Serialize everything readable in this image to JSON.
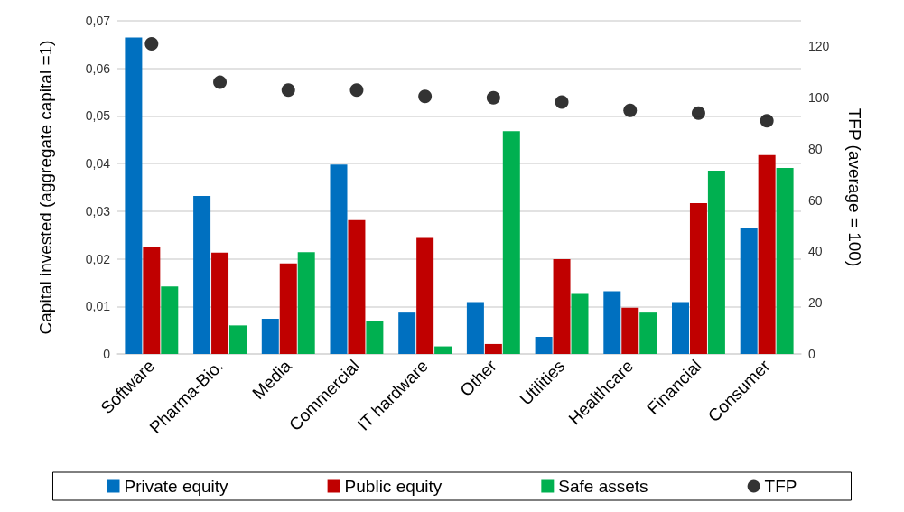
{
  "chart_data": {
    "type": "bar",
    "ylabel": "Capital invested (aggregate capital =1)",
    "y2label": "TFP (average = 100)",
    "categories": [
      "Software",
      "Pharma-Bio.",
      "Media",
      "Commercial",
      "IT hardware",
      "Other",
      "Utilities",
      "Healthcare",
      "Financial",
      "Consumer"
    ],
    "series": [
      {
        "name": "Private equity",
        "color": "#0070c0",
        "values": [
          0.0665,
          0.0332,
          0.0074,
          0.0398,
          0.0087,
          0.0109,
          0.0036,
          0.0132,
          0.0109,
          0.0265
        ]
      },
      {
        "name": "Public equity",
        "color": "#c00000",
        "values": [
          0.0225,
          0.0213,
          0.019,
          0.0281,
          0.0244,
          0.0021,
          0.0199,
          0.0097,
          0.0317,
          0.0418
        ]
      },
      {
        "name": "Safe assets",
        "color": "#00b050",
        "values": [
          0.0142,
          0.006,
          0.0214,
          0.007,
          0.0016,
          0.0468,
          0.0126,
          0.0087,
          0.0385,
          0.0391
        ]
      },
      {
        "name": "TFP",
        "color": "#000000",
        "type": "scatter",
        "axis": "y2",
        "values": [
          121,
          106,
          103,
          103,
          100.5,
          100,
          98.3,
          95,
          94,
          91
        ]
      }
    ],
    "ylim": [
      0,
      0.07
    ],
    "yticks": [
      0,
      {
        "value": 0.01,
        "label": "0,01"
      },
      {
        "value": 0.02,
        "label": "0,02"
      },
      {
        "value": 0.03,
        "label": "0,03"
      },
      {
        "value": 0.04,
        "label": "0,04"
      },
      {
        "value": 0.05,
        "label": "0,05"
      },
      {
        "value": 0.06,
        "label": "0,06"
      },
      {
        "value": 0.07,
        "label": "0,07"
      }
    ],
    "y2lim": [
      0,
      130
    ],
    "y2ticks": [
      0,
      20,
      40,
      60,
      80,
      100,
      120
    ],
    "grid": "y",
    "legend": "bottom",
    "marker": "circle"
  }
}
